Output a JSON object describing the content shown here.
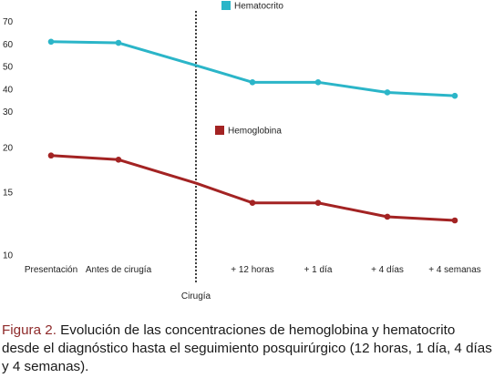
{
  "chart_data": {
    "type": "line",
    "categories": [
      "Presentación",
      "Antes de cirugía",
      "Cirugía",
      "+ 12 horas",
      "+ 1 día",
      "+ 4 días",
      "+ 4 semanas"
    ],
    "upper_panel": {
      "yticks": [
        "70",
        "60",
        "50",
        "40",
        "30"
      ],
      "series": [
        {
          "name": "Hematocrito",
          "color": "#2bb5c8",
          "values": [
            61,
            60.5,
            50.5,
            43,
            43,
            38.5,
            37
          ]
        }
      ]
    },
    "lower_panel": {
      "yticks": [
        "20",
        "15",
        "10"
      ],
      "series": [
        {
          "name": "Hemoglobina",
          "color": "#a32323",
          "values": [
            19,
            18.5,
            15.9,
            14,
            14,
            12.8,
            12.5
          ]
        }
      ]
    },
    "annotation": "Cirugía"
  },
  "caption": {
    "figure_label": "Figura 2.",
    "text": " Evolución de las concentraciones de hemoglobina y hematocrito desde el diagnóstico hasta el seguimiento posquirúrgico (12 horas, 1 día, 4 días y 4 semanas)."
  }
}
